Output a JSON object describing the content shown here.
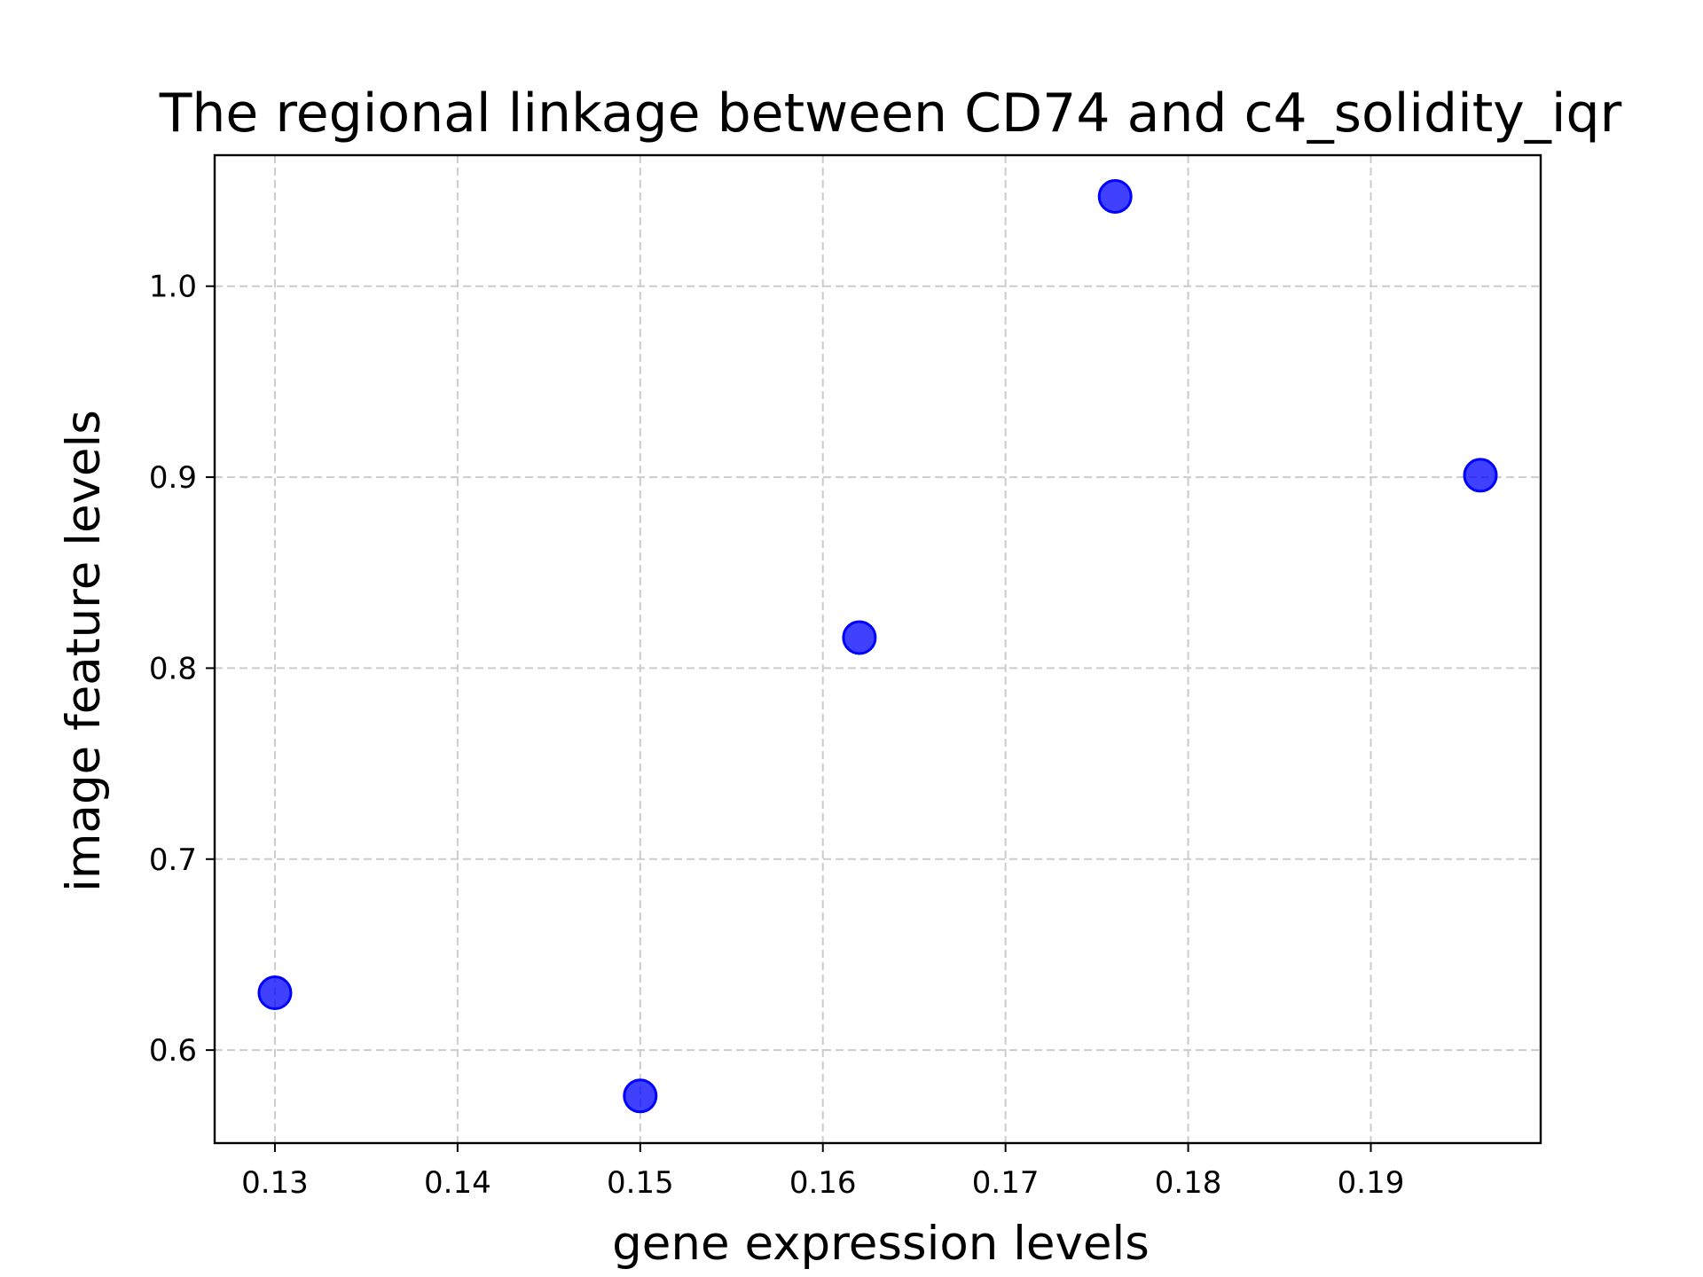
{
  "chart_data": {
    "type": "scatter",
    "title": "The regional linkage between CD74 and c4_solidity_iqr",
    "xlabel": "gene expression levels",
    "ylabel": "image feature levels",
    "xlim": [
      0.1267,
      0.1993
    ],
    "ylim": [
      0.5513,
      1.0686
    ],
    "xticks": [
      0.13,
      0.14,
      0.15,
      0.16,
      0.17,
      0.18,
      0.19
    ],
    "xtick_labels": [
      "0.13",
      "0.14",
      "0.15",
      "0.16",
      "0.17",
      "0.18",
      "0.19"
    ],
    "yticks": [
      0.6,
      0.7,
      0.8,
      0.9,
      1.0
    ],
    "ytick_labels": [
      "0.6",
      "0.7",
      "0.8",
      "0.9",
      "1.0"
    ],
    "grid": true,
    "series": [
      {
        "color": "#0000ff",
        "points": [
          {
            "x": 0.13,
            "y": 0.63
          },
          {
            "x": 0.15,
            "y": 0.576
          },
          {
            "x": 0.162,
            "y": 0.816
          },
          {
            "x": 0.176,
            "y": 1.047
          },
          {
            "x": 0.196,
            "y": 0.901
          }
        ]
      }
    ]
  }
}
